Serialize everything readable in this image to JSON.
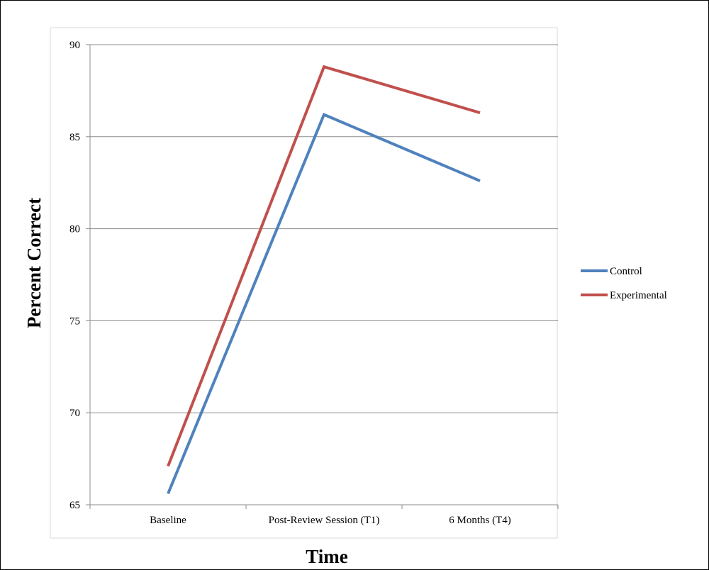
{
  "chart_data": {
    "type": "line",
    "title": "",
    "xlabel": "Time",
    "ylabel": "Percent Correct",
    "categories": [
      "Baseline",
      "Post-Review Session (T1)",
      "6 Months (T4)"
    ],
    "ylim": [
      65,
      90
    ],
    "yticks": [
      65,
      70,
      75,
      80,
      85,
      90
    ],
    "grid": true,
    "legend_position": "right",
    "series": [
      {
        "name": "Control",
        "color": "#4f81bd",
        "values": [
          65.6,
          86.2,
          82.6
        ]
      },
      {
        "name": "Experimental",
        "color": "#c0504d",
        "values": [
          67.1,
          88.8,
          86.3
        ]
      }
    ]
  }
}
